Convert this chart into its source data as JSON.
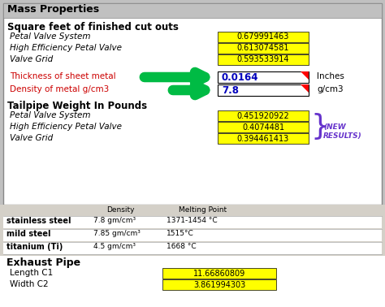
{
  "title": "Mass Properties",
  "bg_color": "#c0c0c0",
  "panel_bg": "#ffffff",
  "panel_table_bg": "#d4d0c8",
  "section1_title": "Square feet of finished cut outs",
  "section1_items": [
    "Petal Valve System",
    "High Efficiency Petal Valve",
    "Valve Grid"
  ],
  "section1_values": [
    "0.679991463",
    "0.613074581",
    "0.593533914"
  ],
  "thickness_label": "Thickness of sheet metal",
  "density_label": "Density of metal g/cm3",
  "thickness_value": "0.0164",
  "density_value": "7.8",
  "thickness_unit": "Inches",
  "density_unit": "g/cm3",
  "section2_title": "Tailpipe Weight In Pounds",
  "section2_items": [
    "Petal Valve System",
    "High Efficiency Petal Valve",
    "Valve Grid"
  ],
  "section2_values": [
    "0.451920922",
    "0.4074481",
    "0.394461413"
  ],
  "table_headers": [
    "",
    "Density",
    "Melting Point"
  ],
  "table_rows": [
    [
      "stainless steel",
      "7.8 gm/cm³",
      "1371-1454 °C"
    ],
    [
      "mild steel",
      "7.85 gm/cm³",
      "1515°C"
    ],
    [
      "titanium (Ti)",
      "4.5 gm/cm³",
      "1668 °C"
    ]
  ],
  "section3_title": "Exhaust Pipe",
  "section3_items": [
    "Length C1",
    "Width C2"
  ],
  "section3_values": [
    "11.66860809",
    "3.861994303"
  ],
  "yellow_bg": "#ffff00",
  "red_label_color": "#cc0000",
  "blue_value_color": "#0000bb",
  "green_color": "#00bb44",
  "purple_color": "#6633cc",
  "black": "#000000",
  "header_bg": "#c0c0c0"
}
